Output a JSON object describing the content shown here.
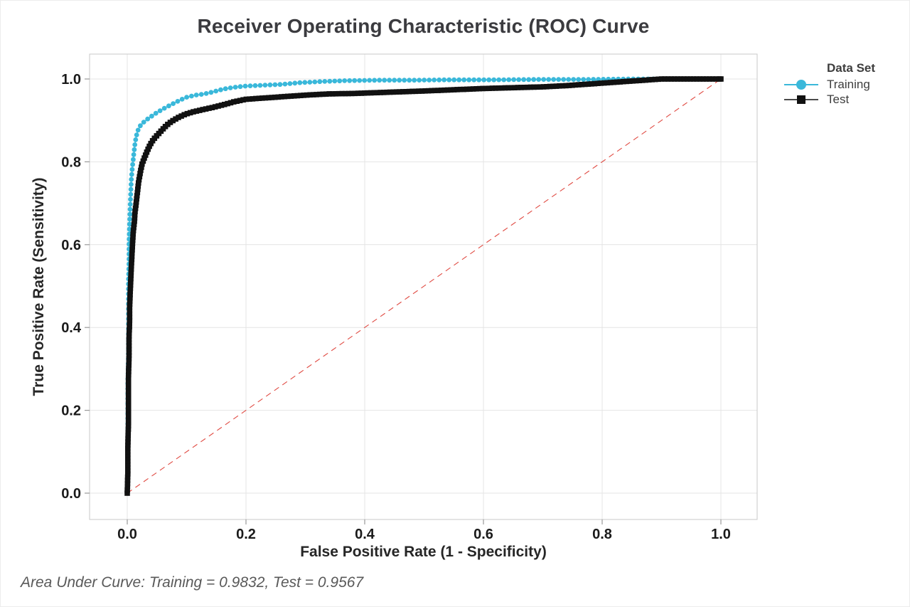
{
  "title": "Receiver Operating Characteristic (ROC) Curve",
  "xlabel": "False Positive Rate (1 - Specificity)",
  "ylabel": "True Positive Rate (Sensitivity)",
  "footer": "Area Under Curve: Training = 0.9832, Test = 0.9567",
  "legend": {
    "title": "Data Set",
    "items": [
      {
        "label": "Training"
      },
      {
        "label": "Test"
      }
    ]
  },
  "chart_data": {
    "type": "line",
    "title": "Receiver Operating Characteristic (ROC) Curve",
    "xlabel": "False Positive Rate (1 - Specificity)",
    "ylabel": "True Positive Rate (Sensitivity)",
    "xlim": [
      0,
      1
    ],
    "ylim": [
      0,
      1
    ],
    "x_ticks": [
      "0.0",
      "0.2",
      "0.4",
      "0.6",
      "0.8",
      "1.0"
    ],
    "y_ticks": [
      "0.0",
      "0.2",
      "0.4",
      "0.6",
      "0.8",
      "1.0"
    ],
    "grid": true,
    "legend_position": "right",
    "colors": {
      "training": "#3ab8da",
      "test": "#111111",
      "test_line": "#4a4a4a",
      "reference": "#e04a42",
      "gridline": "#e4e4e4",
      "border": "#c8c8c8",
      "tick": "#999999"
    },
    "series": [
      {
        "name": "Training",
        "marker": "circle",
        "auc": 0.9832,
        "points": [
          [
            0,
            0
          ],
          [
            0.001,
            0.06
          ],
          [
            0.001,
            0.13
          ],
          [
            0.001,
            0.2
          ],
          [
            0.001,
            0.27
          ],
          [
            0.002,
            0.34
          ],
          [
            0.002,
            0.4
          ],
          [
            0.002,
            0.46
          ],
          [
            0.002,
            0.51
          ],
          [
            0.003,
            0.56
          ],
          [
            0.003,
            0.61
          ],
          [
            0.004,
            0.655
          ],
          [
            0.005,
            0.695
          ],
          [
            0.006,
            0.73
          ],
          [
            0.007,
            0.762
          ],
          [
            0.009,
            0.792
          ],
          [
            0.011,
            0.818
          ],
          [
            0.013,
            0.843
          ],
          [
            0.015,
            0.861
          ],
          [
            0.018,
            0.876
          ],
          [
            0.022,
            0.887
          ],
          [
            0.027,
            0.895
          ],
          [
            0.033,
            0.902
          ],
          [
            0.04,
            0.909
          ],
          [
            0.048,
            0.917
          ],
          [
            0.057,
            0.925
          ],
          [
            0.067,
            0.933
          ],
          [
            0.078,
            0.941
          ],
          [
            0.089,
            0.949
          ],
          [
            0.1,
            0.956
          ],
          [
            0.115,
            0.961
          ],
          [
            0.13,
            0.964
          ],
          [
            0.145,
            0.969
          ],
          [
            0.16,
            0.975
          ],
          [
            0.18,
            0.98
          ],
          [
            0.2,
            0.983
          ],
          [
            0.23,
            0.985
          ],
          [
            0.26,
            0.987
          ],
          [
            0.29,
            0.991
          ],
          [
            0.33,
            0.994
          ],
          [
            0.37,
            0.996
          ],
          [
            0.42,
            0.997
          ],
          [
            0.48,
            0.997
          ],
          [
            0.54,
            0.998
          ],
          [
            0.62,
            0.998
          ],
          [
            0.7,
            0.999
          ],
          [
            0.78,
            0.999
          ],
          [
            0.85,
            1
          ],
          [
            1,
            1
          ]
        ]
      },
      {
        "name": "Test",
        "marker": "square",
        "auc": 0.9567,
        "points": [
          [
            0,
            0
          ],
          [
            0.001,
            0.05
          ],
          [
            0.001,
            0.11
          ],
          [
            0.002,
            0.17
          ],
          [
            0.002,
            0.23
          ],
          [
            0.002,
            0.28
          ],
          [
            0.003,
            0.33
          ],
          [
            0.003,
            0.375
          ],
          [
            0.004,
            0.415
          ],
          [
            0.004,
            0.45
          ],
          [
            0.005,
            0.485
          ],
          [
            0.006,
            0.52
          ],
          [
            0.007,
            0.55
          ],
          [
            0.008,
            0.578
          ],
          [
            0.009,
            0.605
          ],
          [
            0.01,
            0.63
          ],
          [
            0.012,
            0.655
          ],
          [
            0.013,
            0.678
          ],
          [
            0.015,
            0.7
          ],
          [
            0.017,
            0.725
          ],
          [
            0.019,
            0.75
          ],
          [
            0.022,
            0.775
          ],
          [
            0.025,
            0.795
          ],
          [
            0.029,
            0.81
          ],
          [
            0.033,
            0.824
          ],
          [
            0.038,
            0.84
          ],
          [
            0.044,
            0.854
          ],
          [
            0.051,
            0.865
          ],
          [
            0.058,
            0.876
          ],
          [
            0.066,
            0.888
          ],
          [
            0.075,
            0.898
          ],
          [
            0.086,
            0.907
          ],
          [
            0.098,
            0.915
          ],
          [
            0.112,
            0.921
          ],
          [
            0.127,
            0.926
          ],
          [
            0.143,
            0.931
          ],
          [
            0.16,
            0.937
          ],
          [
            0.18,
            0.945
          ],
          [
            0.2,
            0.951
          ],
          [
            0.23,
            0.954
          ],
          [
            0.26,
            0.957
          ],
          [
            0.3,
            0.961
          ],
          [
            0.34,
            0.964
          ],
          [
            0.38,
            0.965
          ],
          [
            0.42,
            0.967
          ],
          [
            0.46,
            0.969
          ],
          [
            0.5,
            0.971
          ],
          [
            0.55,
            0.974
          ],
          [
            0.6,
            0.977
          ],
          [
            0.65,
            0.979
          ],
          [
            0.7,
            0.981
          ],
          [
            0.74,
            0.984
          ],
          [
            0.78,
            0.988
          ],
          [
            0.81,
            0.991
          ],
          [
            0.84,
            0.994
          ],
          [
            0.87,
            0.997
          ],
          [
            0.9,
            1
          ],
          [
            1,
            1
          ]
        ]
      }
    ],
    "reference_line": {
      "from": [
        0,
        0
      ],
      "to": [
        1,
        1
      ],
      "style": "dashed"
    }
  }
}
